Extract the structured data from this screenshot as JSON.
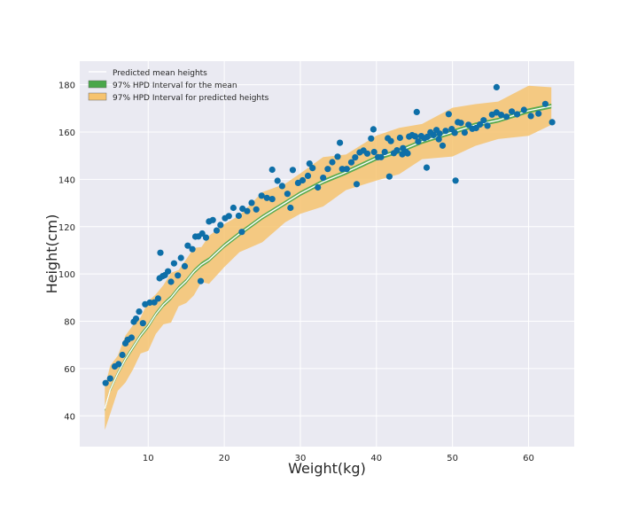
{
  "chart_data": {
    "type": "scatter",
    "title": "",
    "xlabel": "Weight(kg)",
    "ylabel": "Height(cm)",
    "xlim": [
      1.0,
      66.0
    ],
    "ylim": [
      27.0,
      190.0
    ],
    "xticks": [
      10,
      20,
      30,
      40,
      50,
      60
    ],
    "yticks": [
      40,
      60,
      80,
      100,
      120,
      140,
      160,
      180
    ],
    "grid": true,
    "legend_position": "top-left",
    "legend": [
      {
        "label": "Predicted mean heights",
        "kind": "line",
        "color": "#ffffff"
      },
      {
        "label": "97% HPD Interval for the mean",
        "kind": "patch",
        "color": "#4aa74a"
      },
      {
        "label": "97% HPD Interval for predicted heights",
        "kind": "patch",
        "color": "#f6c36e"
      }
    ],
    "mean_curve": {
      "x": [
        4.3,
        5,
        6,
        7,
        8,
        9,
        10,
        11,
        12,
        13,
        14,
        15,
        16,
        17,
        18,
        20,
        22,
        25,
        28,
        30,
        33,
        36,
        40,
        43,
        46,
        50,
        53,
        56,
        60,
        63
      ],
      "y": [
        43,
        51,
        58,
        64,
        69,
        74,
        78,
        83,
        87,
        90,
        94,
        97,
        101,
        104,
        106,
        112,
        117,
        124,
        130,
        134,
        139,
        143,
        149,
        152,
        156,
        160,
        163,
        165,
        169,
        171
      ]
    },
    "hpd_mean_halfwidth": 1.0,
    "hpd_pred_halfwidth": 9.0,
    "scatter_color": "#0e6fa8",
    "observations": {
      "x": [
        4.4,
        5.0,
        5.6,
        6.1,
        6.6,
        7.0,
        7.3,
        7.8,
        8.1,
        8.4,
        8.8,
        9.3,
        9.6,
        10.2,
        10.8,
        11.3,
        11.5,
        11.9,
        12.2,
        12.6,
        13.0,
        13.4,
        13.9,
        14.3,
        14.8,
        15.2,
        15.8,
        16.2,
        16.6,
        17.1,
        17.6,
        18.0,
        18.5,
        19.0,
        19.5,
        20.1,
        20.6,
        21.2,
        21.9,
        22.4,
        23.0,
        23.6,
        24.2,
        24.9,
        25.6,
        26.3,
        27.0,
        27.6,
        28.3,
        29.0,
        29.7,
        30.3,
        31.0,
        31.6,
        32.3,
        33.0,
        33.6,
        34.2,
        34.9,
        35.5,
        36.1,
        36.7,
        37.2,
        37.8,
        38.3,
        38.8,
        39.3,
        39.7,
        40.2,
        40.6,
        41.1,
        41.5,
        41.9,
        42.3,
        42.7,
        43.1,
        43.5,
        43.9,
        44.3,
        44.7,
        45.1,
        45.5,
        45.9,
        46.3,
        46.7,
        47.1,
        47.5,
        47.9,
        48.3,
        48.7,
        49.1,
        49.5,
        49.9,
        50.3,
        50.7,
        51.1,
        51.6,
        52.1,
        52.6,
        53.1,
        53.6,
        54.1,
        54.6,
        55.2,
        55.8,
        56.4,
        57.1,
        57.8,
        58.5,
        59.4,
        60.3,
        61.3,
        62.2,
        63.1,
        11.6,
        16.9,
        50.4,
        55.8,
        28.7,
        22.3,
        37.4,
        44.1,
        41.7,
        46.6,
        48.2,
        35.2,
        43.4,
        39.6,
        31.2,
        45.3,
        26.3
      ],
      "y": [
        53.9,
        55.8,
        60.9,
        61.9,
        65.8,
        70.7,
        72.2,
        73.1,
        79.8,
        81.1,
        84.1,
        79.2,
        87.2,
        87.9,
        88.0,
        89.6,
        98.2,
        99.1,
        99.5,
        101.1,
        96.7,
        104.5,
        99.4,
        106.8,
        103.3,
        112.0,
        110.5,
        115.8,
        115.9,
        117.1,
        115.4,
        122.2,
        122.8,
        118.4,
        120.7,
        123.6,
        124.5,
        128.0,
        124.6,
        127.6,
        126.6,
        130.1,
        127.3,
        133.1,
        132.2,
        131.7,
        139.4,
        137.2,
        133.9,
        144.0,
        138.5,
        139.6,
        141.5,
        144.8,
        136.6,
        140.7,
        144.4,
        147.3,
        149.6,
        144.4,
        144.4,
        147.2,
        149.3,
        151.4,
        152.2,
        150.9,
        157.3,
        151.6,
        149.4,
        149.4,
        151.6,
        157.4,
        156.2,
        151.1,
        152.3,
        157.6,
        153.2,
        151.6,
        158.1,
        158.7,
        158.2,
        156.0,
        158.3,
        157.4,
        158.0,
        159.9,
        158.7,
        160.9,
        159.4,
        154.3,
        160.5,
        167.6,
        161.3,
        159.7,
        164.2,
        163.9,
        159.8,
        163.1,
        161.4,
        161.7,
        163.2,
        165.0,
        162.7,
        167.4,
        168.3,
        167.3,
        166.5,
        168.7,
        167.5,
        169.4,
        166.8,
        167.8,
        171.9,
        164.2,
        109.0,
        97.0,
        139.5,
        179.0,
        128.0,
        117.8,
        138.0,
        151.0,
        141.2,
        145.0,
        157.0,
        155.5,
        150.6,
        161.2,
        146.7,
        168.5,
        144.1
      ]
    }
  }
}
